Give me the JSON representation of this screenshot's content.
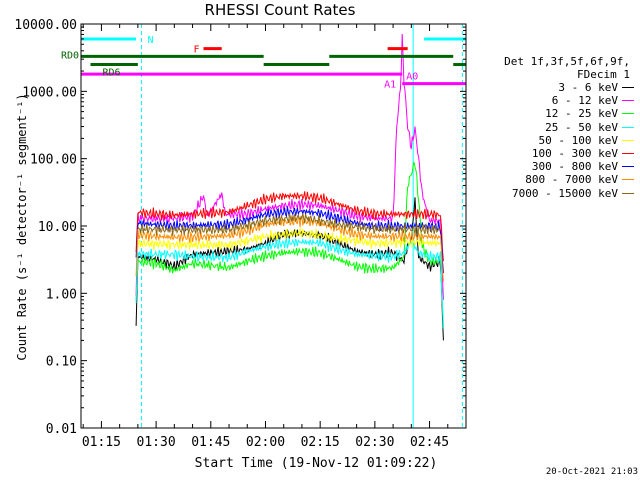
{
  "chart_data": {
    "type": "line",
    "title": "RHESSI Count Rates",
    "xlabel": "Start Time (19-Nov-12 01:09:22)",
    "ylabel": "Count Rate (s⁻¹ detector⁻¹ segment⁻¹)",
    "ylog": true,
    "ylim": [
      0.01,
      10000
    ],
    "y_ticks": [
      "0.01",
      "0.10",
      "1.00",
      "10.00",
      "100.00",
      "1000.00",
      "10000.00"
    ],
    "x_range_min": [
      69.4,
      175
    ],
    "x_ticks": [
      "01:15",
      "01:30",
      "01:45",
      "02:00",
      "02:15",
      "02:30",
      "02:45"
    ],
    "legend": {
      "title_lines": [
        "Det 1f,3f,5f,6f,9f,",
        "FDecim 1"
      ],
      "placement": "right"
    },
    "series": [
      {
        "name": "3 - 6 keV",
        "color": "#000000",
        "points": [
          [
            84.5,
            0.3
          ],
          [
            85,
            3.5
          ],
          [
            90,
            3.2
          ],
          [
            95,
            2.5
          ],
          [
            100,
            3.8
          ],
          [
            105,
            4.0
          ],
          [
            110,
            4.2
          ],
          [
            115,
            4.5
          ],
          [
            120,
            5.5
          ],
          [
            125,
            7.5
          ],
          [
            130,
            7.8
          ],
          [
            135,
            7.2
          ],
          [
            140,
            5.5
          ],
          [
            145,
            4.2
          ],
          [
            150,
            3.8
          ],
          [
            155,
            4.0
          ],
          [
            158,
            3.0
          ],
          [
            159,
            5.0
          ],
          [
            160,
            6.0
          ],
          [
            161,
            25
          ],
          [
            161.5,
            8
          ],
          [
            162,
            3.5
          ],
          [
            165,
            2.5
          ],
          [
            168,
            3.0
          ],
          [
            168.8,
            0.2
          ]
        ]
      },
      {
        "name": "6 - 12 keV",
        "color": "#ff00ff",
        "points": [
          [
            84.5,
            1.0
          ],
          [
            85,
            13
          ],
          [
            95,
            13
          ],
          [
            100,
            14
          ],
          [
            103,
            28
          ],
          [
            104,
            14
          ],
          [
            108,
            30
          ],
          [
            109,
            15
          ],
          [
            115,
            15
          ],
          [
            120,
            18
          ],
          [
            125,
            20
          ],
          [
            130,
            21
          ],
          [
            135,
            20
          ],
          [
            140,
            17
          ],
          [
            145,
            14
          ],
          [
            150,
            13
          ],
          [
            155,
            13
          ],
          [
            156,
            300
          ],
          [
            157,
            1100
          ],
          [
            157.5,
            6000
          ],
          [
            158,
            1500
          ],
          [
            159,
            300
          ],
          [
            160,
            150
          ],
          [
            161,
            280
          ],
          [
            162,
            100
          ],
          [
            163,
            30
          ],
          [
            165,
            12
          ],
          [
            168,
            12
          ],
          [
            168.8,
            0.8
          ]
        ]
      },
      {
        "name": "12 - 25 keV",
        "color": "#00ff00",
        "points": [
          [
            84.5,
            0.8
          ],
          [
            85,
            3.0
          ],
          [
            90,
            2.8
          ],
          [
            95,
            2.2
          ],
          [
            100,
            2.8
          ],
          [
            110,
            2.4
          ],
          [
            115,
            3.0
          ],
          [
            120,
            3.6
          ],
          [
            125,
            4.0
          ],
          [
            130,
            4.2
          ],
          [
            135,
            4.0
          ],
          [
            140,
            3.2
          ],
          [
            145,
            2.5
          ],
          [
            150,
            2.3
          ],
          [
            155,
            2.4
          ],
          [
            158,
            3.5
          ],
          [
            159,
            40
          ],
          [
            160,
            60
          ],
          [
            161,
            90
          ],
          [
            162,
            25
          ],
          [
            163,
            5
          ],
          [
            165,
            3.0
          ],
          [
            168,
            3.0
          ],
          [
            168.8,
            0.3
          ]
        ]
      },
      {
        "name": "25 - 50 keV",
        "color": "#00ffff",
        "points": [
          [
            84.5,
            0.8
          ],
          [
            85,
            3.8
          ],
          [
            95,
            3.8
          ],
          [
            100,
            3.5
          ],
          [
            110,
            3.4
          ],
          [
            115,
            4.2
          ],
          [
            120,
            5.0
          ],
          [
            125,
            5.5
          ],
          [
            130,
            5.8
          ],
          [
            135,
            5.6
          ],
          [
            140,
            4.5
          ],
          [
            145,
            3.8
          ],
          [
            150,
            3.6
          ],
          [
            155,
            3.5
          ],
          [
            158,
            4.0
          ],
          [
            160,
            6.0
          ],
          [
            162,
            4.0
          ],
          [
            165,
            3.5
          ],
          [
            168,
            3.5
          ],
          [
            168.8,
            0.3
          ]
        ]
      },
      {
        "name": "50 - 100 keV",
        "color": "#ffff00",
        "points": [
          [
            85,
            5.5
          ],
          [
            95,
            5.3
          ],
          [
            110,
            5.2
          ],
          [
            120,
            7.0
          ],
          [
            130,
            8.0
          ],
          [
            140,
            6.5
          ],
          [
            150,
            5.5
          ],
          [
            160,
            5.8
          ],
          [
            168,
            5.5
          ]
        ]
      },
      {
        "name": "100 - 300 keV",
        "color": "#ff0000",
        "points": [
          [
            84.5,
            4.0
          ],
          [
            85,
            16
          ],
          [
            90,
            15
          ],
          [
            95,
            14.5
          ],
          [
            100,
            15
          ],
          [
            105,
            15.5
          ],
          [
            110,
            16
          ],
          [
            115,
            20
          ],
          [
            120,
            25
          ],
          [
            125,
            28
          ],
          [
            130,
            28
          ],
          [
            135,
            26
          ],
          [
            140,
            21
          ],
          [
            145,
            17
          ],
          [
            150,
            15
          ],
          [
            155,
            15
          ],
          [
            160,
            15
          ],
          [
            165,
            15
          ],
          [
            168,
            14.5
          ],
          [
            168.8,
            3.0
          ]
        ]
      },
      {
        "name": "300 - 800 keV",
        "color": "#0000ff",
        "points": [
          [
            84.5,
            3.0
          ],
          [
            85,
            11
          ],
          [
            90,
            10.5
          ],
          [
            95,
            10
          ],
          [
            100,
            10.2
          ],
          [
            105,
            10.4
          ],
          [
            110,
            10.5
          ],
          [
            115,
            12.5
          ],
          [
            120,
            15
          ],
          [
            125,
            16
          ],
          [
            130,
            16.5
          ],
          [
            135,
            15.5
          ],
          [
            140,
            13
          ],
          [
            145,
            11
          ],
          [
            150,
            10
          ],
          [
            155,
            10
          ],
          [
            160,
            10
          ],
          [
            165,
            10
          ],
          [
            168,
            9.5
          ],
          [
            168.8,
            2.0
          ]
        ]
      },
      {
        "name": "800 - 7000 keV",
        "color": "#ff8c00",
        "points": [
          [
            84.5,
            2.0
          ],
          [
            85,
            7.5
          ],
          [
            90,
            7.0
          ],
          [
            95,
            6.8
          ],
          [
            100,
            6.8
          ],
          [
            105,
            7.0
          ],
          [
            110,
            7.2
          ],
          [
            115,
            8.5
          ],
          [
            120,
            10.5
          ],
          [
            125,
            11.5
          ],
          [
            130,
            12
          ],
          [
            135,
            11
          ],
          [
            140,
            9.0
          ],
          [
            145,
            7.5
          ],
          [
            150,
            7.0
          ],
          [
            155,
            7.0
          ],
          [
            160,
            7.0
          ],
          [
            165,
            7.0
          ],
          [
            168,
            6.8
          ],
          [
            168.8,
            1.5
          ]
        ]
      },
      {
        "name": "7000 - 15000 keV",
        "color": "#8b6914",
        "points": [
          [
            85,
            9.0
          ],
          [
            95,
            8.8
          ],
          [
            110,
            8.8
          ],
          [
            120,
            12
          ],
          [
            130,
            13.5
          ],
          [
            140,
            10.5
          ],
          [
            150,
            9.0
          ],
          [
            160,
            9.0
          ],
          [
            168,
            8.8
          ]
        ]
      }
    ],
    "state_bars": [
      {
        "label": "N",
        "color": "#00ffff",
        "y": 6000,
        "segments": [
          [
            69.4,
            84.5
          ],
          [
            163.5,
            175
          ]
        ]
      },
      {
        "label": "F",
        "color": "#ff0000",
        "y": 4300,
        "segments": [
          [
            103,
            108
          ],
          [
            153.5,
            159
          ]
        ]
      },
      {
        "label": "RD0",
        "color": "#006400",
        "y": 3300,
        "segments": [
          [
            69.4,
            119.5
          ],
          [
            137.5,
            171.5
          ]
        ]
      },
      {
        "label": "RD6",
        "color": "#006400",
        "y": 2500,
        "segments": [
          [
            72,
            85
          ],
          [
            119.5,
            137.5
          ],
          [
            171.5,
            175
          ]
        ]
      },
      {
        "label": "A1",
        "color": "#ff00ff",
        "y": 1800,
        "segments": [
          [
            69.4,
            157.5
          ]
        ]
      },
      {
        "label": "A0",
        "color": "#ff00ff",
        "y": 1300,
        "segments": [
          [
            157.5,
            175
          ]
        ]
      }
    ],
    "vlines": [
      {
        "x": 69.4,
        "color": "#00ffff",
        "style": "solid"
      },
      {
        "x": 86,
        "color": "#00ffff",
        "style": "dashed"
      },
      {
        "x": 160.5,
        "color": "#00ffff",
        "style": "solid"
      },
      {
        "x": 174,
        "color": "#00ffff",
        "style": "dashed"
      }
    ]
  },
  "footer": {
    "timestamp": "20-Oct-2021 21:03"
  }
}
